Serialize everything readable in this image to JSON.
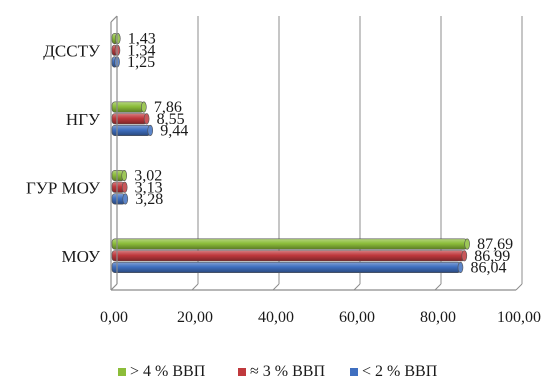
{
  "chart_data": {
    "type": "bar",
    "orientation": "horizontal",
    "categories": [
      "МОУ",
      "ГУР МОУ",
      "НГУ",
      "ДССТУ"
    ],
    "series": [
      {
        "name": "< 2 % ВВП",
        "color": "#3f6fc0",
        "values": [
          86.04,
          3.28,
          9.44,
          1.25
        ],
        "labels": [
          "86,04",
          "3,28",
          "9,44",
          "1,25"
        ]
      },
      {
        "name": "≈ 3 % ВВП",
        "color": "#c0393d",
        "values": [
          86.99,
          3.13,
          8.55,
          1.34
        ],
        "labels": [
          "86,99",
          "3,13",
          "8,55",
          "1,34"
        ]
      },
      {
        "name": "> 4 % ВВП",
        "color": "#8cbd3a",
        "values": [
          87.69,
          3.02,
          7.86,
          1.43
        ],
        "labels": [
          "87,69",
          "3,02",
          "7,86",
          "1,43"
        ]
      }
    ],
    "xlim": [
      0,
      100
    ],
    "xticks": [
      0,
      20,
      40,
      60,
      80,
      100
    ],
    "xtick_labels": [
      "0,00",
      "20,00",
      "40,00",
      "60,00",
      "80,00",
      "100,00"
    ],
    "grid": true,
    "legend_position": "bottom",
    "legend_order": [
      "> 4 % ВВП",
      "≈ 3 % ВВП",
      "< 2 % ВВП"
    ],
    "title": "",
    "xlabel": "",
    "ylabel": ""
  }
}
